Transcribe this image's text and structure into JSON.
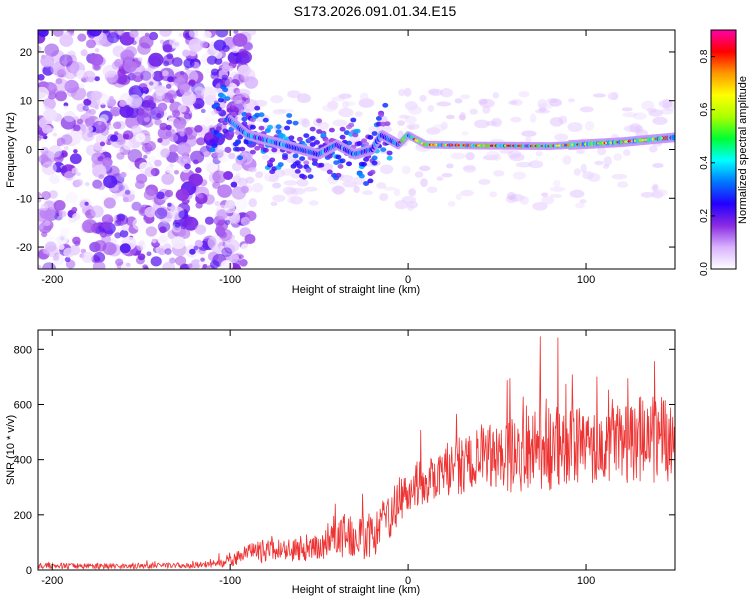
{
  "title": "S173.2026.091.01.34.E15",
  "chart_data": [
    {
      "type": "heatmap",
      "title": "S173.2026.091.01.34.E15",
      "xlabel": "Height of straight line (km)",
      "ylabel": "Frequency (Hz)",
      "xlim": [
        -208,
        150
      ],
      "ylim": [
        -24.5,
        24.5
      ],
      "xticks": [
        -200,
        -100,
        0,
        100
      ],
      "yticks": [
        -20,
        -10,
        0,
        10,
        20
      ],
      "colorbar": {
        "label": "Normalized spectral amplitude",
        "range": [
          0.0,
          0.9
        ],
        "ticks": [
          0.0,
          0.2,
          0.4,
          0.6,
          0.8
        ],
        "colormap": [
          "#ffffff",
          "#d9b3ff",
          "#8a2be2",
          "#2200ff",
          "#0077ff",
          "#00ffff",
          "#00ff33",
          "#aaff00",
          "#ffff00",
          "#ff9900",
          "#ff0000",
          "#ff00aa"
        ]
      },
      "features": {
        "noise_region_x": [
          -208,
          -100
        ],
        "carrier_line": [
          {
            "x": -100,
            "y": 6
          },
          {
            "x": -90,
            "y": 3
          },
          {
            "x": -80,
            "y": 2
          },
          {
            "x": -70,
            "y": 1
          },
          {
            "x": -60,
            "y": 0
          },
          {
            "x": -50,
            "y": -1
          },
          {
            "x": -40,
            "y": 1
          },
          {
            "x": -30,
            "y": -1
          },
          {
            "x": -20,
            "y": 0
          },
          {
            "x": -15,
            "y": 3
          },
          {
            "x": -5,
            "y": 1
          },
          {
            "x": 0,
            "y": 3
          },
          {
            "x": 10,
            "y": 1
          },
          {
            "x": 40,
            "y": 0.8
          },
          {
            "x": 80,
            "y": 0.7
          },
          {
            "x": 120,
            "y": 1.5
          },
          {
            "x": 150,
            "y": 2.5
          }
        ]
      }
    },
    {
      "type": "line",
      "xlabel": "Height of straight line (km)",
      "ylabel": "SNR (10 * v/v)",
      "xlim": [
        -208,
        150
      ],
      "ylim": [
        0,
        870
      ],
      "xticks": [
        -200,
        -100,
        0,
        100
      ],
      "yticks": [
        0,
        200,
        400,
        600,
        800
      ],
      "color": "#ee3333",
      "envelope": {
        "x": [
          -208,
          -150,
          -110,
          -100,
          -90,
          -80,
          -70,
          -60,
          -50,
          -40,
          -30,
          -20,
          -10,
          0,
          10,
          20,
          30,
          40,
          50,
          60,
          70,
          80,
          90,
          100,
          110,
          120,
          130,
          140,
          150
        ],
        "mean": [
          15,
          15,
          18,
          30,
          60,
          70,
          75,
          70,
          80,
          120,
          140,
          120,
          200,
          300,
          320,
          360,
          380,
          400,
          410,
          420,
          430,
          440,
          440,
          450,
          450,
          460,
          470,
          480,
          450
        ],
        "amp": [
          15,
          15,
          15,
          30,
          50,
          60,
          60,
          60,
          70,
          100,
          150,
          110,
          130,
          120,
          120,
          140,
          150,
          160,
          180,
          200,
          220,
          230,
          220,
          200,
          200,
          210,
          230,
          240,
          180
        ]
      }
    }
  ]
}
